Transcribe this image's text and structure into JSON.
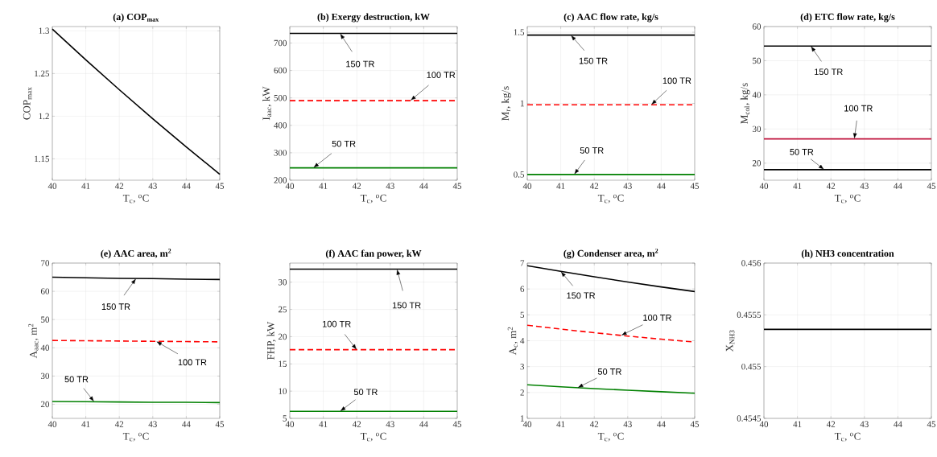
{
  "chart_data": [
    {
      "type": "line",
      "title": "(a) COP$_{max}$",
      "xlabel": "T$_{c}$, $^{o}$C",
      "ylabel": "COP$_{max}$",
      "x": [
        40,
        41,
        42,
        43,
        44,
        45
      ],
      "xlim": [
        40,
        45
      ],
      "xticks": [
        40,
        41,
        42,
        43,
        44,
        45
      ],
      "ylim": [
        1.125,
        1.305
      ],
      "yticks": [
        1.15,
        1.2,
        1.25,
        1.3
      ],
      "grid": true,
      "series": [
        {
          "color": "#000000",
          "values": [
            1.302,
            1.266,
            1.231,
            1.197,
            1.164,
            1.132
          ]
        }
      ]
    },
    {
      "type": "line",
      "title": "(b) Exergy destruction, kW",
      "xlabel": "T$_{c}$, $^{o}$C",
      "ylabel": "I$_{aac}$, kW",
      "x": [
        40,
        41,
        42,
        43,
        44,
        45
      ],
      "xlim": [
        40,
        45
      ],
      "xticks": [
        40,
        41,
        42,
        43,
        44,
        45
      ],
      "ylim": [
        200,
        760
      ],
      "yticks": [
        200,
        300,
        400,
        500,
        600,
        700
      ],
      "grid": true,
      "series": [
        {
          "name": "150 TR",
          "color": "#000000",
          "line_style": "solid",
          "values": [
            735,
            735,
            735,
            735,
            735,
            735
          ]
        },
        {
          "name": "100 TR",
          "color": "#ff0000",
          "line_style": "dashed",
          "values": [
            490,
            490,
            490,
            490,
            490,
            490
          ]
        },
        {
          "name": "50 TR",
          "color": "#008000",
          "line_style": "solid",
          "values": [
            245,
            245,
            245,
            245,
            245,
            245
          ]
        }
      ]
    },
    {
      "type": "line",
      "title": "(c) AAC flow rate, kg/s",
      "xlabel": "T$_{c}$, $^{o}$C",
      "ylabel": "M$_{r}$, kg/s",
      "x": [
        40,
        41,
        42,
        43,
        44,
        45
      ],
      "xlim": [
        40,
        45
      ],
      "xticks": [
        40,
        41,
        42,
        43,
        44,
        45
      ],
      "ylim": [
        0.46,
        1.54
      ],
      "yticks": [
        0.5,
        1,
        1.5
      ],
      "grid": true,
      "series": [
        {
          "name": "150 TR",
          "color": "#000000",
          "line_style": "solid",
          "values": [
            1.48,
            1.48,
            1.48,
            1.48,
            1.48,
            1.48
          ]
        },
        {
          "name": "100 TR",
          "color": "#ff0000",
          "line_style": "dashed",
          "values": [
            0.99,
            0.99,
            0.99,
            0.99,
            0.99,
            0.99
          ]
        },
        {
          "name": "50 TR",
          "color": "#008000",
          "line_style": "solid",
          "values": [
            0.5,
            0.5,
            0.5,
            0.5,
            0.5,
            0.5
          ]
        }
      ]
    },
    {
      "type": "line",
      "title": "(d) ETC flow rate, kg/s",
      "xlabel": "T$_{c}$, $^{o}$C",
      "ylabel": "M$_{col}$, kg/s",
      "x": [
        40,
        41,
        42,
        43,
        44,
        45
      ],
      "xlim": [
        40,
        45
      ],
      "xticks": [
        40,
        41,
        42,
        43,
        44,
        45
      ],
      "ylim": [
        15,
        60
      ],
      "yticks": [
        20,
        30,
        40,
        50,
        60
      ],
      "grid": true,
      "series": [
        {
          "name": "150 TR",
          "color": "#000000",
          "line_style": "solid",
          "values": [
            54.3,
            54.3,
            54.3,
            54.3,
            54.3,
            54.3
          ]
        },
        {
          "name": "100 TR",
          "color": "#c0143c",
          "line_style": "solid",
          "values": [
            27.1,
            27.1,
            27.1,
            27.1,
            27.1,
            27.1
          ]
        },
        {
          "name": "50 TR",
          "color": "#000000",
          "line_style": "solid",
          "values": [
            18.1,
            18.1,
            18.1,
            18.1,
            18.1,
            18.1
          ]
        }
      ]
    },
    {
      "type": "line",
      "title": "(e) AAC area, m$^{2}$",
      "xlabel": "T$_{c}$, $^{o}$C",
      "ylabel": "A$_{aac}$, m$^{2}$",
      "x": [
        40,
        41,
        42,
        43,
        44,
        45
      ],
      "xlim": [
        40,
        45
      ],
      "xticks": [
        40,
        41,
        42,
        43,
        44,
        45
      ],
      "ylim": [
        15,
        70
      ],
      "yticks": [
        20,
        30,
        40,
        50,
        60,
        70
      ],
      "grid": true,
      "series": [
        {
          "name": "150 TR",
          "color": "#000000",
          "line_style": "solid",
          "values": [
            65.0,
            64.8,
            64.6,
            64.5,
            64.3,
            64.2
          ]
        },
        {
          "name": "100 TR",
          "color": "#ff0000",
          "line_style": "dashed",
          "values": [
            42.6,
            42.5,
            42.4,
            42.3,
            42.2,
            42.1
          ]
        },
        {
          "name": "50 TR",
          "color": "#008000",
          "line_style": "solid",
          "values": [
            21.0,
            20.9,
            20.8,
            20.7,
            20.7,
            20.6
          ]
        }
      ]
    },
    {
      "type": "line",
      "title": "(f) AAC fan power, kW",
      "xlabel": "T$_{c}$, $^{o}$C",
      "ylabel": "FHP, kW",
      "x": [
        40,
        41,
        42,
        43,
        44,
        45
      ],
      "xlim": [
        40,
        45
      ],
      "xticks": [
        40,
        41,
        42,
        43,
        44,
        45
      ],
      "ylim": [
        5,
        33.5
      ],
      "yticks": [
        5,
        10,
        15,
        20,
        25,
        30
      ],
      "grid": true,
      "series": [
        {
          "name": "150 TR",
          "color": "#000000",
          "line_style": "solid",
          "values": [
            32.4,
            32.4,
            32.4,
            32.4,
            32.4,
            32.4
          ]
        },
        {
          "name": "100 TR",
          "color": "#ff0000",
          "line_style": "dashed",
          "values": [
            17.6,
            17.6,
            17.6,
            17.6,
            17.6,
            17.6
          ]
        },
        {
          "name": "50 TR",
          "color": "#008000",
          "line_style": "solid",
          "values": [
            6.3,
            6.3,
            6.3,
            6.3,
            6.3,
            6.3
          ]
        }
      ]
    },
    {
      "type": "line",
      "title": "(g) Condenser area, m$^{2}$",
      "xlabel": "T$_{c}$, $^{o}$C",
      "ylabel": "A$_{c}$, m$^{2}$",
      "x": [
        40,
        41,
        42,
        43,
        44,
        45
      ],
      "xlim": [
        40,
        45
      ],
      "xticks": [
        40,
        41,
        42,
        43,
        44,
        45
      ],
      "ylim": [
        1,
        7
      ],
      "yticks": [
        1,
        2,
        3,
        4,
        5,
        6,
        7
      ],
      "grid": true,
      "series": [
        {
          "name": "150 TR",
          "color": "#000000",
          "line_style": "solid",
          "values": [
            6.9,
            6.68,
            6.47,
            6.27,
            6.08,
            5.9
          ]
        },
        {
          "name": "100 TR",
          "color": "#ff0000",
          "line_style": "dashed",
          "values": [
            4.6,
            4.45,
            4.31,
            4.18,
            4.06,
            3.95
          ]
        },
        {
          "name": "50 TR",
          "color": "#008000",
          "line_style": "solid",
          "values": [
            2.3,
            2.22,
            2.15,
            2.09,
            2.03,
            1.97
          ]
        }
      ]
    },
    {
      "type": "line",
      "title": "(h) NH3 concentration",
      "xlabel": "T$_{c}$, $^{o}$C",
      "ylabel": "X$_{NH3}$",
      "x": [
        40,
        41,
        42,
        43,
        44,
        45
      ],
      "xlim": [
        40,
        45
      ],
      "xticks": [
        40,
        41,
        42,
        43,
        44,
        45
      ],
      "ylim": [
        0.4545,
        0.456
      ],
      "yticks": [
        0.4545,
        0.455,
        0.4555,
        0.456
      ],
      "grid": true,
      "series": [
        {
          "color": "#000000",
          "values": [
            0.45536,
            0.45536,
            0.45536,
            0.45536,
            0.45536,
            0.45536
          ]
        }
      ]
    }
  ]
}
